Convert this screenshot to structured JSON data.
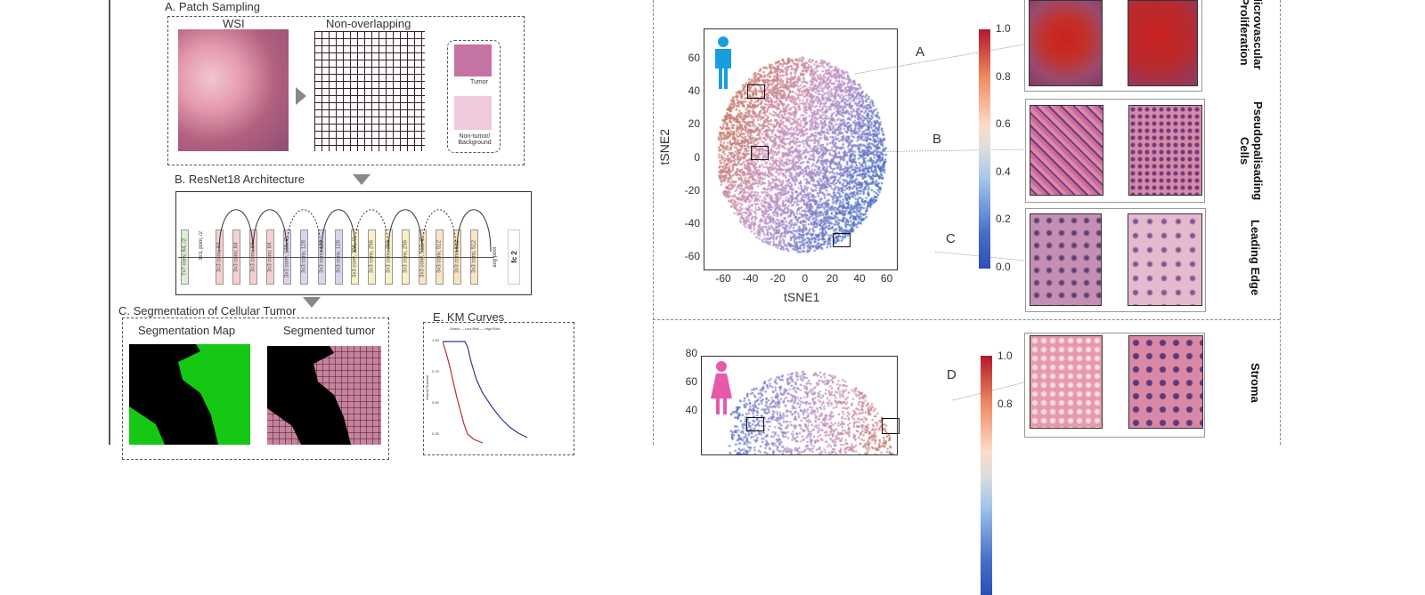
{
  "left": {
    "patch": {
      "title": "A. Patch Sampling",
      "wsi": "WSI",
      "grid": "Non-overlapping",
      "tumor": "Tumor",
      "nontumor": "Non-tumor/ Background"
    },
    "resnet": {
      "title": "B. ResNet18 Architecture",
      "blocks": [
        "7x7 conv, 64, /2",
        "3x3 conv, 64",
        "3x3 conv, 64",
        "3x3 conv, 64",
        "3x3 conv, 64",
        "3x3 conv, 128, /2",
        "3x3 conv, 128",
        "3x3 conv, 128",
        "3x3 conv, 128",
        "3x3 conv, 256, /2",
        "3x3 conv, 256",
        "3x3 conv, 256",
        "3x3 conv, 256",
        "3x3 conv, 512, /2",
        "3x3 conv, 512",
        "3x3 conv, 512",
        "3x3 conv, 512"
      ],
      "pool": "3x3, pool, /2",
      "avgpool": "avg pool",
      "fc": "fc 2"
    },
    "seg": {
      "title": "C. Segmentation of Cellular Tumor",
      "map": "Segmentation Map",
      "tumor": "Segmented tumor"
    },
    "km": {
      "title": "E. KM Curves",
      "legend": "Strata — Low Risk — High Risk",
      "ylabel": "Overall Survival",
      "yticks": [
        "1.00",
        "0.75",
        "0.50",
        "0.25"
      ],
      "low_color": "#2b3a8f",
      "high_color": "#c0282d"
    }
  },
  "right": {
    "plot1": {
      "xlabel": "tSNE1",
      "ylabel": "tSNE2",
      "xticks": [
        "-60",
        "-40",
        "-20",
        "0",
        "20",
        "40",
        "60"
      ],
      "yticks": [
        "60",
        "40",
        "20",
        "0",
        "-20",
        "-40",
        "-60"
      ],
      "regions": [
        "A",
        "B",
        "C"
      ],
      "icon": "male-icon",
      "icon_color": "#1a9de0"
    },
    "cbar1": [
      "1.0",
      "0.8",
      "0.6",
      "0.4",
      "0.2",
      "0.0"
    ],
    "plot2": {
      "yticks": [
        "80",
        "60",
        "40"
      ],
      "regions": [
        "D"
      ],
      "icon": "female-icon",
      "icon_color": "#e85aa9"
    },
    "cbar2": [
      "1.0",
      "0.8"
    ],
    "rows": [
      "Microvascular Proliferation",
      "Pseudopalisading Cells",
      "Leading Edge",
      "Stroma"
    ]
  }
}
